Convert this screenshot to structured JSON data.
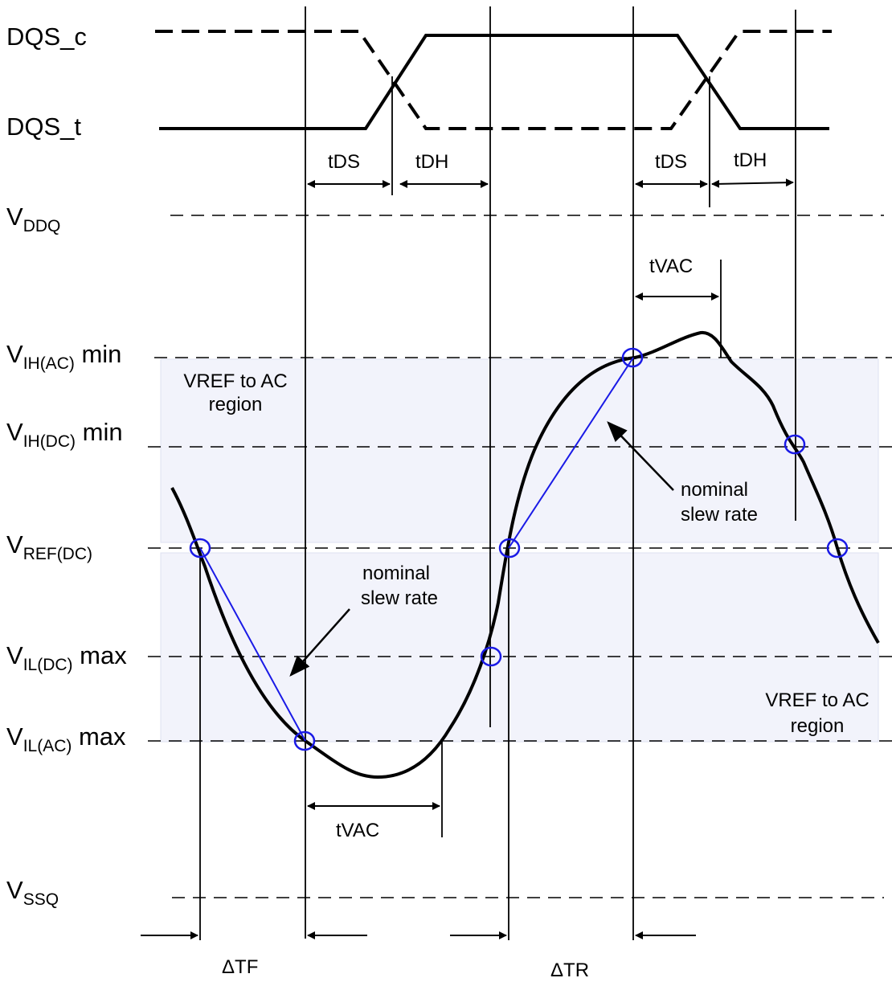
{
  "signals": {
    "dqs_c": "DQS_c",
    "dqs_t": "DQS_t"
  },
  "voltage_labels": {
    "vddq": {
      "v": "V",
      "sub": "DDQ",
      "suffix": ""
    },
    "vih_ac": {
      "v": "V",
      "sub": "IH(AC)",
      "suffix": " min"
    },
    "vih_dc": {
      "v": "V",
      "sub": "IH(DC)",
      "suffix": " min"
    },
    "vref_dc": {
      "v": "V",
      "sub": "REF(DC)",
      "suffix": ""
    },
    "vil_dc": {
      "v": "V",
      "sub": "IL(DC)",
      "suffix": " max"
    },
    "vil_ac": {
      "v": "V",
      "sub": "IL(AC)",
      "suffix": " max"
    },
    "vssq": {
      "v": "V",
      "sub": "SSQ",
      "suffix": ""
    }
  },
  "timing": {
    "tds": "tDS",
    "tdh": "tDH",
    "tvac": "tVAC",
    "delta_tf": "ΔTF",
    "delta_tr": "ΔTR"
  },
  "regions": {
    "upper": {
      "line1": "VREF to AC",
      "line2": "region"
    },
    "lower": {
      "line1": "VREF to AC",
      "line2": "region"
    }
  },
  "annotations": {
    "nominal_slew_line1": "nominal",
    "nominal_slew_line2": "slew rate"
  },
  "colors": {
    "waveform": "#000000",
    "slew_line": "#1a1ae6",
    "marker": "#1a1ae6",
    "region_fill": "#f2f3fb",
    "region_stroke": "#dde0f0"
  }
}
